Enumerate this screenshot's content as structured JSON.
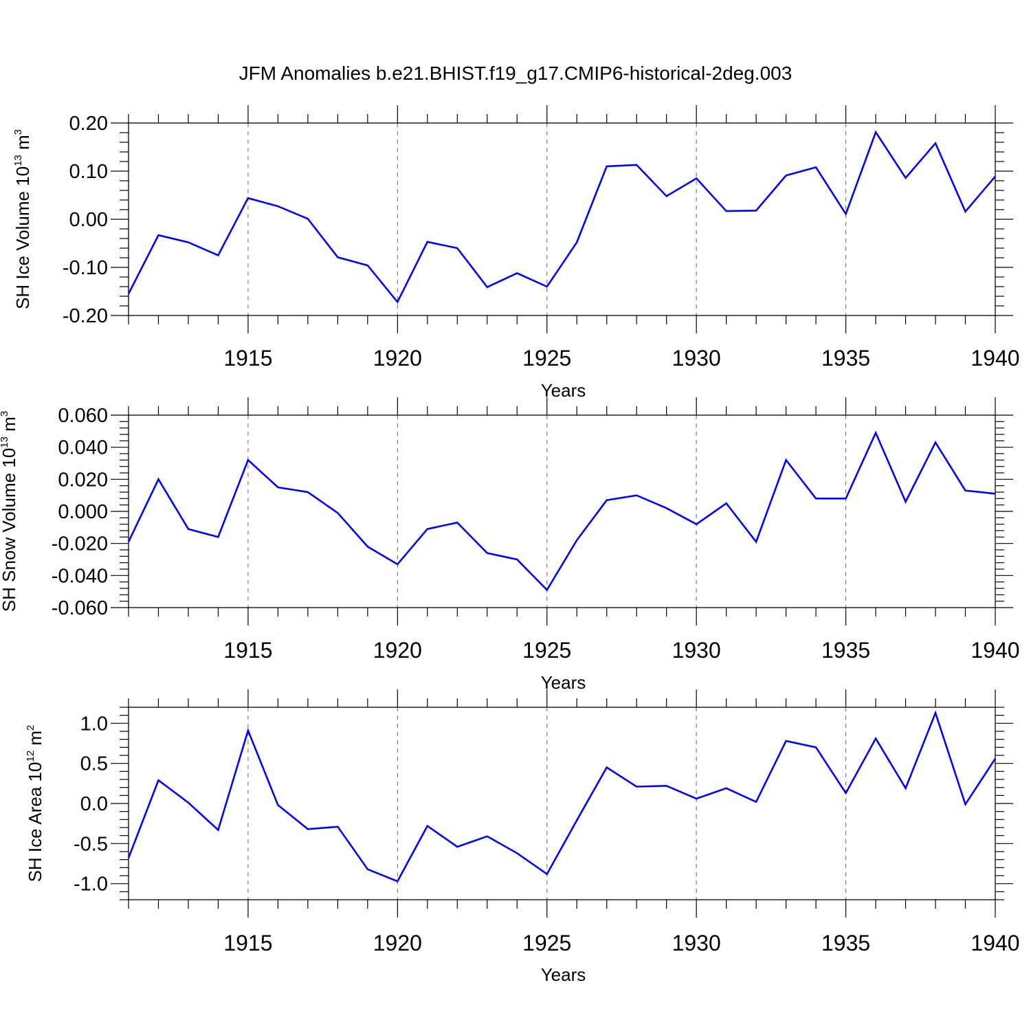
{
  "title": "JFM Anomalies b.e21.BHIST.f19_g17.CMIP6-historical-2deg.003",
  "colors": {
    "line": "#0000ff",
    "axis": "#000000",
    "grid": "#808080"
  },
  "chart_data": [
    {
      "type": "line",
      "xlabel": "Years",
      "ylabel": {
        "text": "SH Ice Volume 10",
        "sup": "13",
        "unit": " m",
        "unit_sup": "3"
      },
      "xlim": [
        1911,
        1940
      ],
      "ylim": [
        -0.2,
        0.2
      ],
      "yticks": [
        -0.2,
        -0.1,
        0.0,
        0.1,
        0.2
      ],
      "ytick_labels": [
        "-0.20",
        "-0.10",
        "0.00",
        "0.10",
        "0.20"
      ],
      "xticks": [
        1915,
        1920,
        1925,
        1930,
        1935,
        1940
      ],
      "xtick_labels": [
        "1915",
        "1920",
        "1925",
        "1930",
        "1935",
        "1940"
      ],
      "grid": "vertical dashed at labeled years",
      "x": [
        1911,
        1912,
        1913,
        1914,
        1915,
        1916,
        1917,
        1918,
        1919,
        1920,
        1921,
        1922,
        1923,
        1924,
        1925,
        1926,
        1927,
        1928,
        1929,
        1930,
        1931,
        1932,
        1933,
        1934,
        1935,
        1936,
        1937,
        1938,
        1939,
        1940
      ],
      "series": [
        {
          "values": [
            -0.155,
            -0.033,
            -0.048,
            -0.075,
            0.044,
            0.027,
            0.001,
            -0.079,
            -0.096,
            -0.172,
            -0.047,
            -0.06,
            -0.141,
            -0.112,
            -0.14,
            -0.048,
            0.11,
            0.113,
            0.048,
            0.085,
            0.017,
            0.018,
            0.091,
            0.108,
            0.011,
            0.181,
            0.086,
            0.158,
            0.016,
            0.089
          ]
        }
      ]
    },
    {
      "type": "line",
      "xlabel": "Years",
      "ylabel": {
        "text": "SH Snow Volume 10",
        "sup": "13",
        "unit": " m",
        "unit_sup": "3"
      },
      "xlim": [
        1911,
        1940
      ],
      "ylim": [
        -0.06,
        0.06
      ],
      "yticks": [
        -0.06,
        -0.04,
        -0.02,
        0.0,
        0.02,
        0.04,
        0.06
      ],
      "ytick_labels": [
        "-0.060",
        "-0.040",
        "-0.020",
        "0.000",
        "0.020",
        "0.040",
        "0.060"
      ],
      "xticks": [
        1915,
        1920,
        1925,
        1930,
        1935,
        1940
      ],
      "xtick_labels": [
        "1915",
        "1920",
        "1925",
        "1930",
        "1935",
        "1940"
      ],
      "grid": "vertical dashed at labeled years",
      "x": [
        1911,
        1912,
        1913,
        1914,
        1915,
        1916,
        1917,
        1918,
        1919,
        1920,
        1921,
        1922,
        1923,
        1924,
        1925,
        1926,
        1927,
        1928,
        1929,
        1930,
        1931,
        1932,
        1933,
        1934,
        1935,
        1936,
        1937,
        1938,
        1939,
        1940
      ],
      "series": [
        {
          "values": [
            -0.019,
            0.02,
            -0.011,
            -0.016,
            0.032,
            0.015,
            0.012,
            -0.001,
            -0.022,
            -0.033,
            -0.011,
            -0.007,
            -0.026,
            -0.03,
            -0.049,
            -0.018,
            0.007,
            0.01,
            0.002,
            -0.008,
            0.005,
            -0.019,
            0.032,
            0.008,
            0.008,
            0.049,
            0.006,
            0.043,
            0.013,
            0.011
          ]
        }
      ]
    },
    {
      "type": "line",
      "xlabel": "Years",
      "ylabel": {
        "text": "SH Ice Area 10",
        "sup": "12",
        "unit": " m",
        "unit_sup": "2"
      },
      "xlim": [
        1911,
        1940
      ],
      "ylim": [
        -1.2,
        1.2
      ],
      "yticks": [
        -1.0,
        -0.5,
        0.0,
        0.5,
        1.0
      ],
      "ytick_labels": [
        "-1.0",
        "-0.5",
        "0.0",
        "0.5",
        "1.0"
      ],
      "xticks": [
        1915,
        1920,
        1925,
        1930,
        1935,
        1940
      ],
      "xtick_labels": [
        "1915",
        "1920",
        "1925",
        "1930",
        "1935",
        "1940"
      ],
      "grid": "vertical dashed at labeled years",
      "x": [
        1911,
        1912,
        1913,
        1914,
        1915,
        1916,
        1917,
        1918,
        1919,
        1920,
        1921,
        1922,
        1923,
        1924,
        1925,
        1926,
        1927,
        1928,
        1929,
        1930,
        1931,
        1932,
        1933,
        1934,
        1935,
        1936,
        1937,
        1938,
        1939,
        1940
      ],
      "series": [
        {
          "values": [
            -0.68,
            0.29,
            0.01,
            -0.33,
            0.91,
            -0.02,
            -0.32,
            -0.29,
            -0.82,
            -0.97,
            -0.28,
            -0.54,
            -0.41,
            -0.62,
            -0.88,
            -0.21,
            0.45,
            0.21,
            0.22,
            0.06,
            0.19,
            0.02,
            0.78,
            0.7,
            0.13,
            0.81,
            0.19,
            1.13,
            -0.01,
            0.56
          ]
        }
      ]
    }
  ]
}
